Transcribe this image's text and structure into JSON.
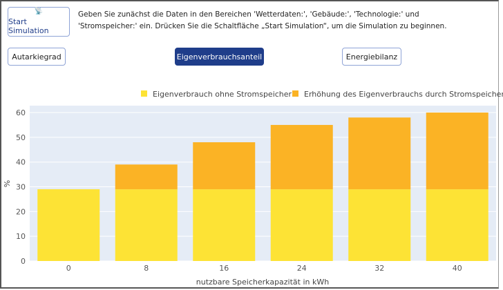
{
  "controls": {
    "start_button": {
      "icon": "satellite-dish-icon",
      "label": "Start Simulation"
    },
    "intro_text": "Geben Sie zunächst die Daten in den Bereichen 'Wetterdaten:', 'Gebäude:', 'Technologie:' und 'Stromspeicher:' ein. Drücken Sie die Schaltfläche „Start Simulation“, um die Simulation zu beginnen.",
    "tabs": [
      {
        "label": "Autarkiegrad",
        "active": false
      },
      {
        "label": "Eigenverbrauchsanteil",
        "active": true
      },
      {
        "label": "Energiebilanz",
        "active": false
      }
    ]
  },
  "chart_data": {
    "type": "bar",
    "stacked": true,
    "categories": [
      "0",
      "8",
      "16",
      "24",
      "32",
      "40"
    ],
    "series": [
      {
        "name": "Eigenverbrauch ohne Stromspeicher",
        "color": "#fde335",
        "values": [
          29,
          29,
          29,
          29,
          29,
          29
        ]
      },
      {
        "name": "Erhöhung des Eigenverbrauchs durch Stromspeicher",
        "color": "#fbb325",
        "values": [
          0,
          10,
          19,
          26,
          29,
          31
        ]
      }
    ],
    "xlabel": "nutzbare Speicherkapazität in kWh",
    "ylabel": "%",
    "ylim": [
      0,
      62.8
    ],
    "yticks": [
      "0",
      "10",
      "20",
      "30",
      "40",
      "50",
      "60"
    ],
    "grid": true,
    "legend": "top-right",
    "plot_bg": "#e5ecf6"
  }
}
